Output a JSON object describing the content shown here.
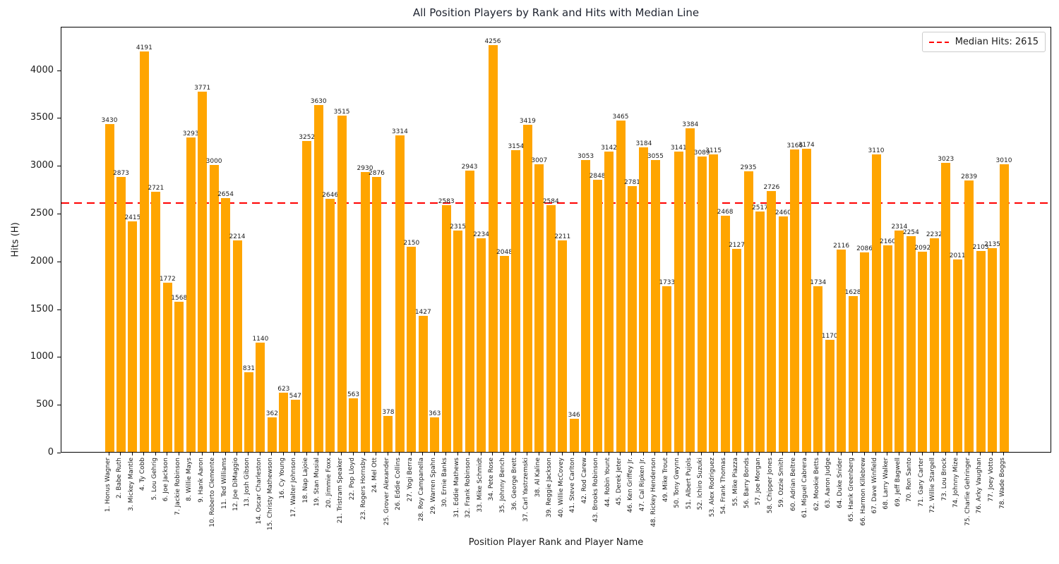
{
  "chart_data": {
    "type": "bar",
    "title": "All Position Players by Rank and Hits with Median Line",
    "xlabel": "Position Player Rank and Player Name",
    "ylabel": "Hits (H)",
    "ylim": [
      0,
      4455
    ],
    "yticks": [
      0,
      500,
      1000,
      1500,
      2000,
      2500,
      3000,
      3500,
      4000
    ],
    "grid": false,
    "bar_color": "#FFA500",
    "median_line": {
      "value": 2615,
      "color": "#FF0000",
      "style": "dashed"
    },
    "legend": {
      "label": "Median Hits: 2615",
      "position": "upper-right"
    },
    "categories": [
      "1. Honus Wagner",
      "2. Babe Ruth",
      "3. Mickey Mantle",
      "4. Ty Cobb",
      "5. Lou Gehrig",
      "6. Joe Jackson",
      "7. Jackie Robinson",
      "8. Willie Mays",
      "9. Hank Aaron",
      "10. Roberto Clemente",
      "11. Ted Williams",
      "12. Joe DiMaggio",
      "13. Josh Gibson",
      "14. Oscar Charleston",
      "15. Christy Mathewson",
      "16. Cy Young",
      "17. Walter Johnson",
      "18. Nap Lajoie",
      "19. Stan Musial",
      "20. Jimmie Foxx",
      "21. Tristram Speaker",
      "22. Pop Lloyd",
      "23. Rogers Hornsby",
      "24. Mel Ott",
      "25. Grover Alexander",
      "26. Eddie Collins",
      "27. Yogi Berra",
      "28. Roy Campanella",
      "29. Warren Spahn",
      "30. Ernie Banks",
      "31. Eddie Mathews",
      "32. Frank Robinson",
      "33. Mike Schmidt",
      "34. Pete Rose",
      "35. Johnny Bench",
      "36. George Brett",
      "37. Carl Yastrzemski",
      "38. Al Kaline",
      "39. Reggie Jackson",
      "40. Willie McCovey",
      "41. Steve Carlton",
      "42. Rod Carew",
      "43. Brooks Robinson",
      "44. Robin Yount",
      "45. Derek Jeter",
      "46. Ken Griffey Jr.",
      "47. Cal Ripken Jr.",
      "48. Rickey Henderson",
      "49. Mike Trout",
      "50. Tony Gwynn",
      "51. Albert Pujols",
      "52. Ichiro Suzuki",
      "53. Alex Rodriguez",
      "54. Frank Thomas",
      "55. Mike Piazza",
      "56. Barry Bonds",
      "57. Joe Morgan",
      "58. Chipper Jones",
      "59. Ozzie Smith",
      "60. Adrian Beltre",
      "61. Miguel Cabrera",
      "62. Mookie Betts",
      "63. Aaron Judge",
      "64. Duke Snider",
      "65. Hank Greenberg",
      "66. Harmon Killebrew",
      "67. Dave Winfield",
      "68. Larry Walker",
      "69. Jeff Bagwell",
      "70. Ron Santo",
      "71. Gary Carter",
      "72. Willie Stargell",
      "73. Lou Brock",
      "74. Johnny Mize",
      "75. Charlie Gehringer",
      "76. Arky Vaughan",
      "77. Joey Votto",
      "78. Wade Boggs"
    ],
    "values": [
      3430,
      2873,
      2415,
      4191,
      2721,
      1772,
      1568,
      3293,
      3771,
      3000,
      2654,
      2214,
      831,
      1140,
      362,
      623,
      547,
      3252,
      3630,
      2646,
      3515,
      563,
      2930,
      2876,
      378,
      3314,
      2150,
      1427,
      363,
      2583,
      2315,
      2943,
      2234,
      4256,
      2048,
      3154,
      3419,
      3007,
      2584,
      2211,
      346,
      3053,
      2848,
      3142,
      3465,
      2781,
      3184,
      3055,
      1733,
      3141,
      3384,
      3089,
      3115,
      2468,
      2127,
      2935,
      2517,
      2726,
      2460,
      3166,
      3174,
      1734,
      1170,
      2116,
      1628,
      2086,
      3110,
      2160,
      2314,
      2254,
      2092,
      2232,
      3023,
      2011,
      2839,
      2103,
      2135,
      3010
    ]
  }
}
